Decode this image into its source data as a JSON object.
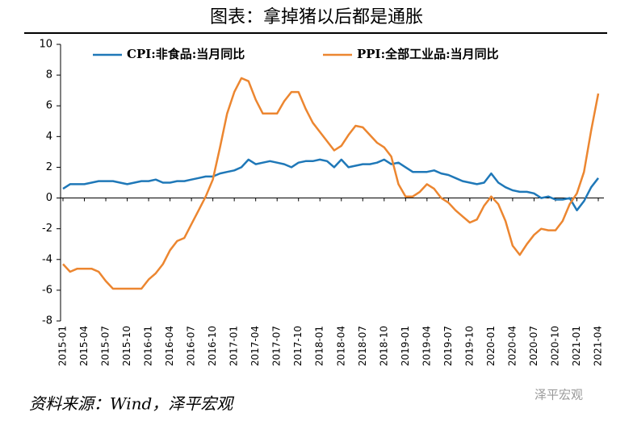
{
  "chart_data": {
    "type": "line",
    "title": "图表：拿掉猪以后都是通胀",
    "source": "资料来源：Wind，泽平宏观",
    "watermark": "泽平宏观",
    "categories": [
      "2015-01",
      null,
      null,
      "2015-04",
      null,
      null,
      "2015-07",
      null,
      null,
      "2015-10",
      null,
      null,
      "2016-01",
      null,
      null,
      "2016-04",
      null,
      null,
      "2016-07",
      null,
      null,
      "2016-10",
      null,
      null,
      "2017-01",
      null,
      null,
      "2017-04",
      null,
      null,
      "2017-07",
      null,
      null,
      "2017-10",
      null,
      null,
      "2018-01",
      null,
      null,
      "2018-04",
      null,
      null,
      "2018-07",
      null,
      null,
      "2018-10",
      null,
      null,
      "2019-01",
      null,
      null,
      "2019-04",
      null,
      null,
      "2019-07",
      null,
      null,
      "2019-10",
      null,
      null,
      "2020-01",
      null,
      null,
      "2020-04",
      null,
      null,
      "2020-07",
      null,
      null,
      "2020-10",
      null,
      null,
      "2021-01",
      null,
      null,
      "2021-04"
    ],
    "series": [
      {
        "name": "CPI:非食品:当月同比",
        "color": "#1f78b8",
        "values": [
          0.6,
          0.9,
          0.9,
          0.9,
          1.0,
          1.1,
          1.1,
          1.1,
          1.0,
          0.9,
          1.0,
          1.1,
          1.1,
          1.2,
          1.0,
          1.0,
          1.1,
          1.1,
          1.2,
          1.3,
          1.4,
          1.4,
          1.6,
          1.7,
          1.8,
          2.0,
          2.5,
          2.2,
          2.3,
          2.4,
          2.3,
          2.2,
          2.0,
          2.3,
          2.4,
          2.4,
          2.5,
          2.4,
          2.0,
          2.5,
          2.0,
          2.1,
          2.2,
          2.2,
          2.3,
          2.5,
          2.2,
          2.3,
          2.0,
          1.7,
          1.7,
          1.7,
          1.8,
          1.6,
          1.5,
          1.3,
          1.1,
          1.0,
          0.9,
          1.0,
          1.6,
          1.0,
          0.7,
          0.5,
          0.4,
          0.4,
          0.3,
          0.0,
          0.1,
          -0.1,
          -0.1,
          0.0,
          -0.8,
          -0.2,
          0.7,
          1.3
        ]
      },
      {
        "name": "PPI:全部工业品:当月同比",
        "color": "#ec8630",
        "values": [
          -4.3,
          -4.8,
          -4.6,
          -4.6,
          -4.6,
          -4.8,
          -5.4,
          -5.9,
          -5.9,
          -5.9,
          -5.9,
          -5.9,
          -5.3,
          -4.9,
          -4.3,
          -3.4,
          -2.8,
          -2.6,
          -1.7,
          -0.8,
          0.1,
          1.2,
          3.3,
          5.5,
          6.9,
          7.8,
          7.6,
          6.4,
          5.5,
          5.5,
          5.5,
          6.3,
          6.9,
          6.9,
          5.8,
          4.9,
          4.3,
          3.7,
          3.1,
          3.4,
          4.1,
          4.7,
          4.6,
          4.1,
          3.6,
          3.3,
          2.7,
          0.9,
          0.1,
          0.1,
          0.4,
          0.9,
          0.6,
          0.0,
          -0.3,
          -0.8,
          -1.2,
          -1.6,
          -1.4,
          -0.5,
          0.1,
          -0.4,
          -1.5,
          -3.1,
          -3.7,
          -3.0,
          -2.4,
          -2.0,
          -2.1,
          -2.1,
          -1.5,
          -0.4,
          0.3,
          1.7,
          4.4,
          6.8
        ]
      }
    ],
    "ylim": [
      -8,
      10
    ],
    "yticks": [
      -8,
      -6,
      -4,
      -2,
      0,
      2,
      4,
      6,
      8,
      10
    ]
  }
}
